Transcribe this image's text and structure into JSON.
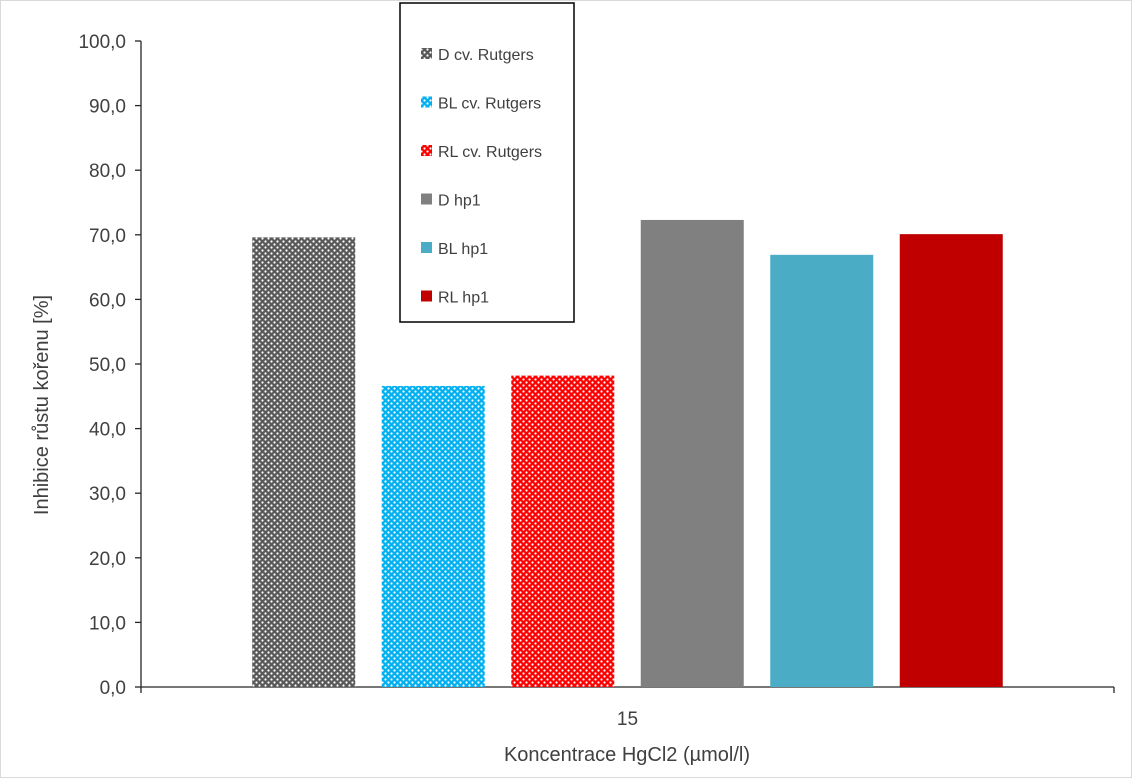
{
  "chart_data": {
    "type": "bar",
    "categories": [
      "15"
    ],
    "xlabel": "Koncentrace HgCl2 (µmol/l)",
    "ylabel": "Inhibice růstu kořenu [%]",
    "ylim": [
      0,
      100
    ],
    "yticks": [
      "0,0",
      "10,0",
      "20,0",
      "30,0",
      "40,0",
      "50,0",
      "60,0",
      "70,0",
      "80,0",
      "90,0",
      "100,0"
    ],
    "grid": false,
    "legend_position": "top-left (inside plot)",
    "series": [
      {
        "name": "D cv. Rutgers",
        "values": [
          69.6
        ],
        "color": "#595959",
        "pattern": "dots"
      },
      {
        "name": "BL cv. Rutgers",
        "values": [
          46.6
        ],
        "color": "#00b0f0",
        "pattern": "dots"
      },
      {
        "name": "RL cv. Rutgers",
        "values": [
          48.2
        ],
        "color": "#ff0000",
        "pattern": "dots"
      },
      {
        "name": "D hp1",
        "values": [
          72.3
        ],
        "color": "#808080",
        "pattern": "solid"
      },
      {
        "name": "BL hp1",
        "values": [
          66.9
        ],
        "color": "#4bacc6",
        "pattern": "solid"
      },
      {
        "name": "RL hp1",
        "values": [
          70.1
        ],
        "color": "#c00000",
        "pattern": "solid"
      }
    ]
  }
}
